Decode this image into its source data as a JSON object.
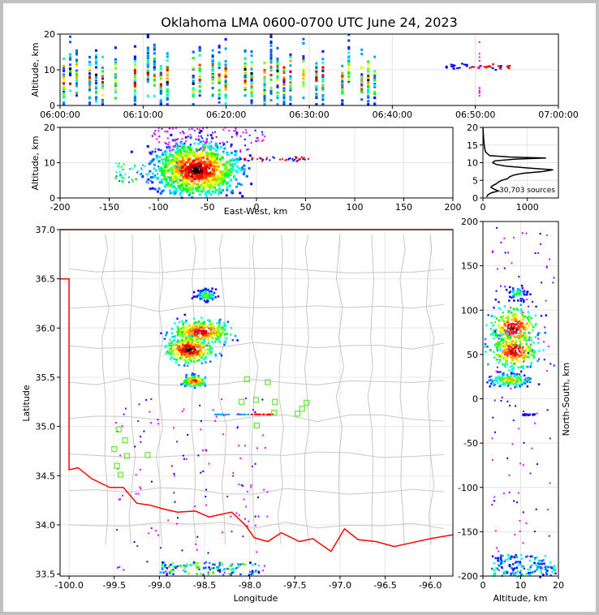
{
  "title": "Oklahoma LMA 0600-0700 UTC June 24, 2023",
  "chart_data": [
    {
      "type": "heatmap",
      "name": "time-altitude",
      "xlabel": "",
      "ylabel": "Altitude, km",
      "xlim": [
        "06:00:00",
        "07:00:00"
      ],
      "ylim": [
        0,
        20
      ],
      "xticks": [
        "06:00:00",
        "06:10:00",
        "06:20:00",
        "06:30:00",
        "06:40:00",
        "06:50:00",
        "07:00:00"
      ],
      "yticks": [
        "0",
        "10",
        "20"
      ],
      "grid": true
    },
    {
      "type": "heatmap",
      "name": "east-west-altitude",
      "xlabel": "East-West, km",
      "ylabel": "Altitude, km",
      "xlim": [
        -200,
        200
      ],
      "ylim": [
        0,
        20
      ],
      "xticks": [
        "-200",
        "-150",
        "-100",
        "-50",
        "0",
        "50",
        "100",
        "150",
        "200"
      ],
      "yticks": [
        "0",
        "10",
        "20"
      ],
      "grid": true
    },
    {
      "type": "line",
      "name": "altitude-histogram",
      "xlabel": "",
      "ylabel": "",
      "xticks": [
        "0",
        "1000"
      ],
      "yticks": [
        "0",
        "5",
        "10",
        "15",
        "20"
      ],
      "xlim": [
        0,
        1700
      ],
      "ylim": [
        0,
        20
      ],
      "annotation": "30,703 sources",
      "series": [
        {
          "altitude": [
            0.3,
            1,
            1.5,
            2,
            2.5,
            3,
            3.5,
            4,
            4.5,
            5,
            5.5,
            6,
            6.5,
            7,
            7.5,
            8,
            8.5,
            9,
            9.5,
            10,
            10.5,
            11,
            11.3,
            11.6,
            12,
            13,
            14,
            15,
            16,
            17,
            18,
            19,
            20
          ],
          "count": [
            80,
            120,
            200,
            350,
            250,
            180,
            220,
            300,
            350,
            420,
            560,
            600,
            700,
            900,
            1350,
            1580,
            1000,
            520,
            300,
            220,
            260,
            700,
            1420,
            600,
            150,
            60,
            40,
            30,
            20,
            15,
            10,
            5,
            0
          ]
        }
      ],
      "grid": true
    },
    {
      "type": "heatmap",
      "name": "plan-view",
      "xlabel": "Longitude",
      "ylabel": "Latitude",
      "xlim": [
        -100.1,
        -95.75
      ],
      "ylim": [
        33.48,
        37.0
      ],
      "xticks": [
        "-100.0",
        "-99.5",
        "-99.0",
        "-98.5",
        "-98.0",
        "-97.5",
        "-97.0",
        "-96.5",
        "-96.0"
      ],
      "yticks": [
        "33.5",
        "34.0",
        "34.5",
        "35.0",
        "35.5",
        "36.0",
        "36.5",
        "37.0"
      ],
      "stations": [
        [
          -99.45,
          34.97
        ],
        [
          -99.38,
          34.86
        ],
        [
          -99.5,
          34.77
        ],
        [
          -99.36,
          34.7
        ],
        [
          -99.13,
          34.71
        ],
        [
          -99.47,
          34.6
        ],
        [
          -99.43,
          34.51
        ],
        [
          -98.03,
          35.48
        ],
        [
          -97.8,
          35.45
        ],
        [
          -98.09,
          35.25
        ],
        [
          -97.93,
          35.27
        ],
        [
          -97.72,
          35.25
        ],
        [
          -97.37,
          35.24
        ],
        [
          -97.42,
          35.18
        ],
        [
          -97.47,
          35.13
        ],
        [
          -97.73,
          35.14
        ],
        [
          -97.92,
          35.01
        ]
      ],
      "grid": true
    },
    {
      "type": "heatmap",
      "name": "altitude-north-south",
      "xlabel": "Altitude, km",
      "ylabel": "North-South, km",
      "xlim": [
        0,
        20
      ],
      "ylim": [
        -200,
        200
      ],
      "xticks": [
        "0",
        "10",
        "20"
      ],
      "yticks": [
        "-200",
        "-150",
        "-100",
        "-50",
        "0",
        "50",
        "100",
        "150",
        "200"
      ],
      "grid": true
    }
  ]
}
